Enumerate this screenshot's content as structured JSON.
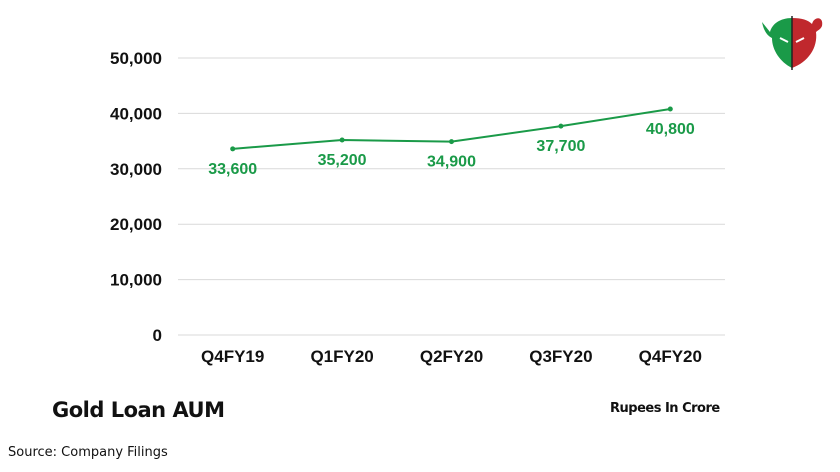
{
  "chart_data": {
    "type": "line",
    "title": "Gold Loan AUM",
    "units_note": "Rupees In Crore",
    "categories": [
      "Q4FY19",
      "Q1FY20",
      "Q2FY20",
      "Q3FY20",
      "Q4FY20"
    ],
    "values": [
      33600,
      35200,
      34900,
      37700,
      40800
    ],
    "data_labels": [
      "33,600",
      "35,200",
      "34,900",
      "37,700",
      "40,800"
    ],
    "yticks": [
      0,
      10000,
      20000,
      30000,
      40000,
      50000
    ],
    "ytick_labels": [
      "0",
      "10,000",
      "20,000",
      "30,000",
      "40,000",
      "50,000"
    ],
    "ylim": [
      0,
      50000
    ],
    "grid": true,
    "series_color": "#1a9a48",
    "xlabel": "",
    "ylabel": ""
  },
  "source": "Source: Company Filings",
  "logo": {
    "icon": "bull-bear-logo",
    "colors": [
      "#1a9a48",
      "#c0282d"
    ]
  }
}
